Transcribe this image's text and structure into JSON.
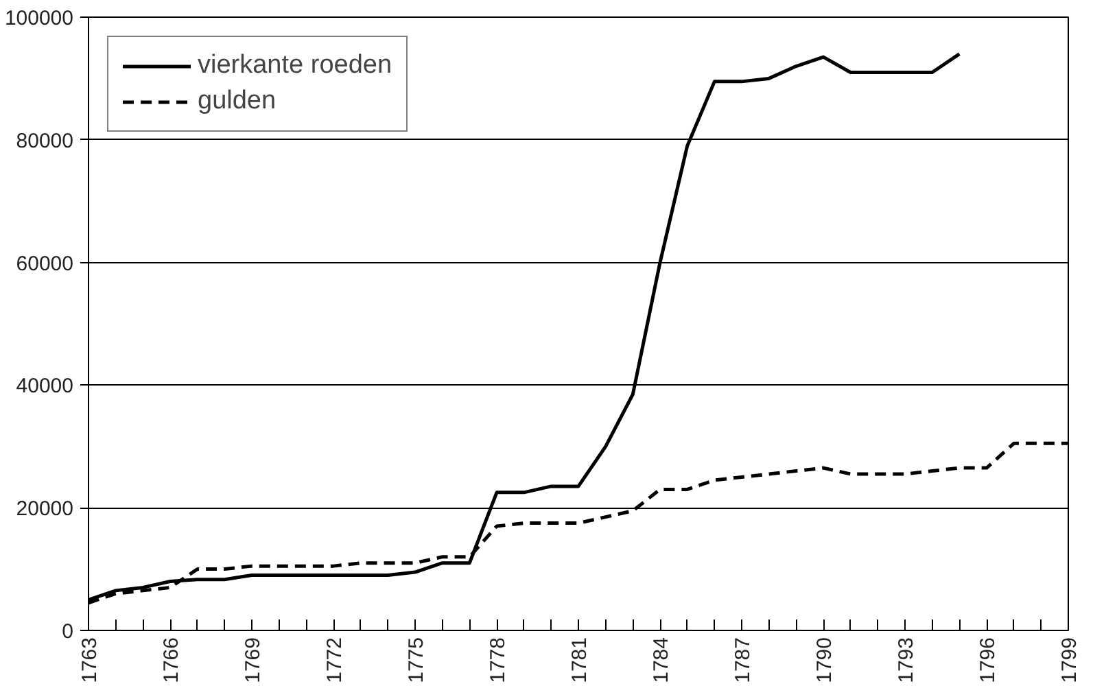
{
  "chart_data": {
    "type": "line",
    "x": [
      1763,
      1764,
      1765,
      1766,
      1767,
      1768,
      1769,
      1770,
      1771,
      1772,
      1773,
      1774,
      1775,
      1776,
      1777,
      1778,
      1779,
      1780,
      1781,
      1782,
      1783,
      1784,
      1785,
      1786,
      1787,
      1788,
      1789,
      1790,
      1791,
      1792,
      1793,
      1794,
      1795,
      1796,
      1797,
      1798,
      1799
    ],
    "series": [
      {
        "name": "vierkante roeden",
        "color": "#000000",
        "line_style": "solid",
        "values": [
          5000,
          6500,
          7000,
          8000,
          8300,
          8300,
          9000,
          9000,
          9000,
          9000,
          9000,
          9000,
          9500,
          11000,
          11000,
          22500,
          22500,
          23500,
          23500,
          30000,
          38500,
          60000,
          79000,
          89500,
          89500,
          90000,
          92000,
          93500,
          91000,
          91000,
          91000,
          91000,
          94000,
          null,
          null,
          null,
          null
        ]
      },
      {
        "name": "gulden",
        "color": "#000000",
        "line_style": "dashed",
        "values": [
          4500,
          6000,
          6500,
          7000,
          10000,
          10000,
          10500,
          10500,
          10500,
          10500,
          11000,
          11000,
          11000,
          12000,
          12000,
          17000,
          17500,
          17500,
          17500,
          18500,
          19500,
          23000,
          23000,
          24500,
          25000,
          25500,
          26000,
          26500,
          25500,
          25500,
          25500,
          26000,
          26500,
          26500,
          30500,
          30500,
          30500
        ]
      }
    ],
    "xlim": [
      1763,
      1799
    ],
    "ylim": [
      0,
      100000
    ],
    "xticks": [
      1763,
      {
        "value": 1764,
        "label": null
      },
      {
        "value": 1765,
        "label": null
      },
      1766,
      {
        "value": 1767,
        "label": null
      },
      {
        "value": 1768,
        "label": null
      },
      1769,
      {
        "value": 1770,
        "label": null
      },
      {
        "value": 1771,
        "label": null
      },
      1772,
      {
        "value": 1773,
        "label": null
      },
      {
        "value": 1774,
        "label": null
      },
      1775,
      {
        "value": 1776,
        "label": null
      },
      {
        "value": 1777,
        "label": null
      },
      1778,
      {
        "value": 1779,
        "label": null
      },
      {
        "value": 1780,
        "label": null
      },
      1781,
      {
        "value": 1782,
        "label": null
      },
      {
        "value": 1783,
        "label": null
      },
      1784,
      {
        "value": 1785,
        "label": null
      },
      {
        "value": 1786,
        "label": null
      },
      1787,
      {
        "value": 1788,
        "label": null
      },
      {
        "value": 1789,
        "label": null
      },
      1790,
      {
        "value": 1791,
        "label": null
      },
      {
        "value": 1792,
        "label": null
      },
      1793,
      {
        "value": 1794,
        "label": null
      },
      {
        "value": 1795,
        "label": null
      },
      1796,
      {
        "value": 1797,
        "label": null
      },
      {
        "value": 1798,
        "label": null
      },
      1799
    ],
    "yticks": [
      0,
      20000,
      40000,
      60000,
      80000,
      100000
    ],
    "grid": "y",
    "legend": "top left"
  }
}
